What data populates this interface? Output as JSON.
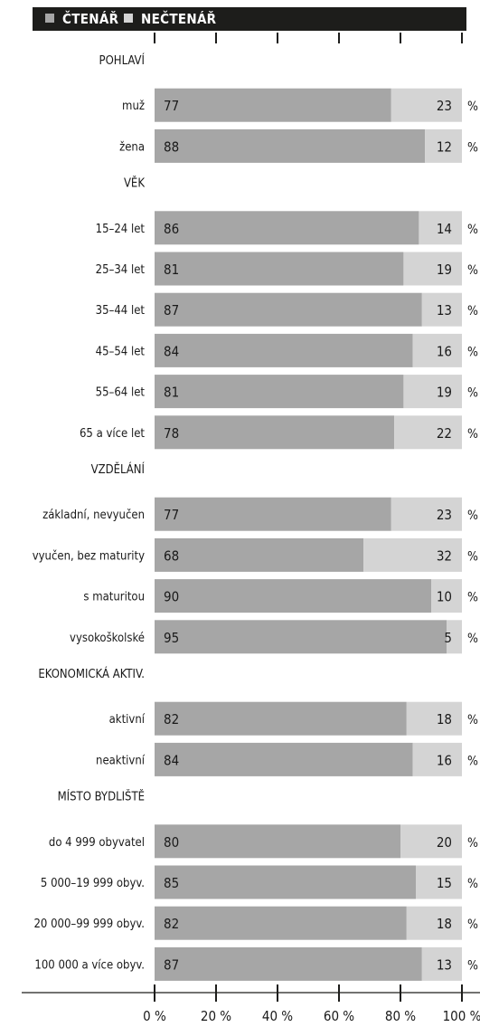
{
  "chart_data": {
    "type": "bar",
    "stacked": true,
    "orientation": "horizontal",
    "legend": [
      {
        "label": "ČTENÁŘ",
        "color": "#a6a6a6"
      },
      {
        "label": "NEČTENÁŘ",
        "color": "#d4d4d4"
      }
    ],
    "unit_label": "%",
    "xlim": [
      0,
      100
    ],
    "ticks": [
      {
        "value": 0,
        "label": "0 %"
      },
      {
        "value": 20,
        "label": "20 %"
      },
      {
        "value": 40,
        "label": "40 %"
      },
      {
        "value": 60,
        "label": "60 %"
      },
      {
        "value": 80,
        "label": "80 %"
      },
      {
        "value": 100,
        "label": "100 %"
      }
    ],
    "groups": [
      {
        "title": "POHLAVÍ",
        "rows": [
          {
            "label": "muž",
            "reader": 77,
            "nonreader": 23
          },
          {
            "label": "žena",
            "reader": 88,
            "nonreader": 12
          }
        ]
      },
      {
        "title": "VĚK",
        "rows": [
          {
            "label": "15–24 let",
            "reader": 86,
            "nonreader": 14
          },
          {
            "label": "25–34 let",
            "reader": 81,
            "nonreader": 19
          },
          {
            "label": "35–44 let",
            "reader": 87,
            "nonreader": 13
          },
          {
            "label": "45–54 let",
            "reader": 84,
            "nonreader": 16
          },
          {
            "label": "55–64 let",
            "reader": 81,
            "nonreader": 19
          },
          {
            "label": "65 a více let",
            "reader": 78,
            "nonreader": 22
          }
        ]
      },
      {
        "title": "VZDĚLÁNÍ",
        "rows": [
          {
            "label": "základní, nevyučen",
            "reader": 77,
            "nonreader": 23
          },
          {
            "label": "vyučen, bez maturity",
            "reader": 68,
            "nonreader": 32
          },
          {
            "label": "s maturitou",
            "reader": 90,
            "nonreader": 10
          },
          {
            "label": "vysokoškolské",
            "reader": 95,
            "nonreader": 5
          }
        ]
      },
      {
        "title": "EKONOMICKÁ AKTIV.",
        "rows": [
          {
            "label": "aktivní",
            "reader": 82,
            "nonreader": 18
          },
          {
            "label": "neaktivní",
            "reader": 84,
            "nonreader": 16
          }
        ]
      },
      {
        "title": "MÍSTO BYDLIŠTĚ",
        "rows": [
          {
            "label": "do 4 999 obyvatel",
            "reader": 80,
            "nonreader": 20
          },
          {
            "label": "5 000–19 999 obyv.",
            "reader": 85,
            "nonreader": 15
          },
          {
            "label": "20 000–99 999 obyv.",
            "reader": 82,
            "nonreader": 18
          },
          {
            "label": "100 000 a více obyv.",
            "reader": 87,
            "nonreader": 13
          }
        ]
      }
    ]
  }
}
